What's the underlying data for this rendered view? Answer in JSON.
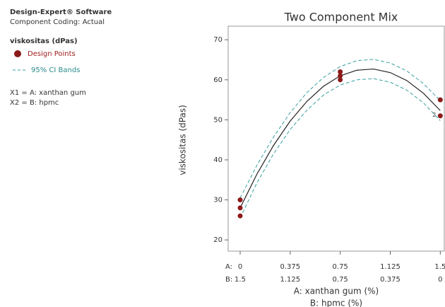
{
  "chart_data": {
    "type": "line",
    "software": "Design-Expert® Software",
    "coding": "Component Coding: Actual",
    "response": "viskositas (dPas)",
    "factor_notes": [
      "X1 = A: xanthan gum",
      "X2 = B: hpmc"
    ],
    "title": "Two Component Mix",
    "y_label": "viskositas (dPas)",
    "x_label": "A: xanthan gum (%)",
    "x2_label": "B: hpmc (%)",
    "x_row_prefix": "A:",
    "x2_row_prefix": "B:",
    "xlim": [
      -0.09,
      1.53
    ],
    "ylim": [
      17.2,
      73.4
    ],
    "xticks": [
      0,
      0.375,
      0.75,
      1.125,
      1.5
    ],
    "x2_tick_labels": [
      "1.5",
      "1.125",
      "0.75",
      "0.375",
      "0"
    ],
    "yticks": [
      20,
      30,
      40,
      50,
      60,
      70
    ],
    "fit": {
      "color": "#222222",
      "x": [
        0,
        0.125,
        0.25,
        0.375,
        0.5,
        0.625,
        0.75,
        0.875,
        1.0,
        1.125,
        1.25,
        1.375,
        1.5
      ],
      "values": [
        28,
        36.4,
        43.6,
        49.7,
        54.6,
        58.4,
        61.0,
        62.4,
        62.7,
        61.8,
        59.8,
        56.6,
        52.3
      ]
    },
    "ci_bands": {
      "name": "95% CI Bands",
      "color": "#3aa0a0",
      "x": [
        0,
        0.125,
        0.25,
        0.375,
        0.5,
        0.625,
        0.75,
        0.875,
        1.0,
        1.125,
        1.25,
        1.375,
        1.5
      ],
      "upper": [
        30.5,
        38.6,
        45.7,
        51.8,
        56.8,
        60.6,
        63.3,
        64.8,
        65.1,
        64.2,
        62.2,
        59.0,
        54.8
      ],
      "lower": [
        25.5,
        34.2,
        41.5,
        47.6,
        52.4,
        56.2,
        58.7,
        60.0,
        60.3,
        59.4,
        57.4,
        54.2,
        49.8
      ]
    },
    "design_points": {
      "name": "Design Points",
      "color": "#8b1a1a",
      "x": [
        0,
        0,
        0,
        0.75,
        0.75,
        0.75,
        1.5,
        1.5
      ],
      "values": [
        26,
        28,
        30,
        60,
        61,
        62,
        51,
        55
      ]
    },
    "annotation": "2"
  }
}
